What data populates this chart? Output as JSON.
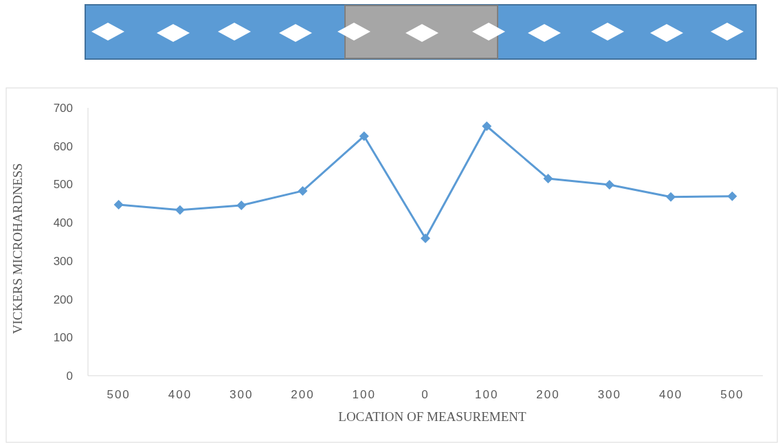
{
  "chart_data": {
    "type": "line",
    "xlabel": "LOCATION OF MEASUREMENT",
    "ylabel": "VICKERS MICROHARDNESS",
    "categories": [
      "500",
      "400",
      "300",
      "200",
      "100",
      "0",
      "100",
      "200",
      "300",
      "400",
      "500"
    ],
    "series": [
      {
        "color": "#5b9bd5",
        "values": [
          447,
          433,
          445,
          483,
          626,
          359,
          652,
          515,
          499,
          467,
          469
        ]
      }
    ],
    "ylim": [
      0,
      700
    ],
    "yticks": [
      0,
      100,
      200,
      300,
      400,
      500,
      600,
      700
    ],
    "grid": false,
    "marker": "diamond",
    "line_style": "solid"
  }
}
